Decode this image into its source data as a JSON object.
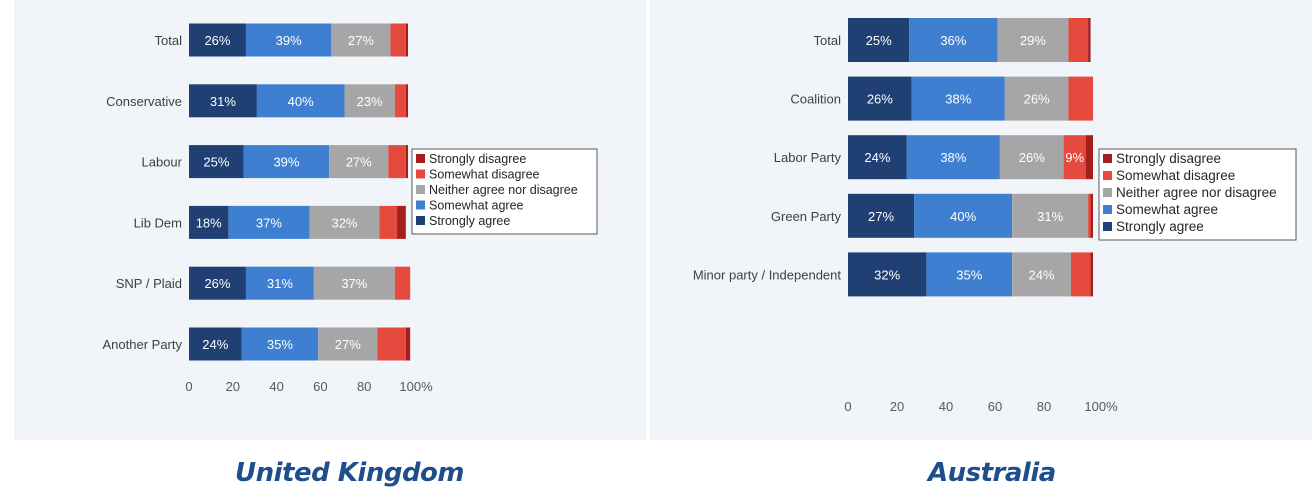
{
  "captions": {
    "left": "United Kingdom",
    "right": "Australia"
  },
  "colors": {
    "Strongly agree": "#203f73",
    "Somewhat agree": "#3f7fd1",
    "Neither agree nor disagree": "#a6a6a6",
    "Somewhat disagree": "#e44b3e",
    "Strongly disagree": "#a51f1f",
    "panel_background": "#f1f4f8"
  },
  "chart_data": [
    {
      "type": "bar",
      "orientation": "horizontal",
      "stacked": true,
      "title": "United Kingdom",
      "categories": [
        "Total",
        "Conservative",
        "Labour",
        "Lib Dem",
        "SNP / Plaid",
        "Another Party"
      ],
      "series": [
        {
          "name": "Strongly agree",
          "values": [
            26,
            31,
            25,
            18,
            26,
            24
          ],
          "labels": [
            "26%",
            "31%",
            "25%",
            "18%",
            "26%",
            "24%"
          ]
        },
        {
          "name": "Somewhat agree",
          "values": [
            39,
            40,
            39,
            37,
            31,
            35
          ],
          "labels": [
            "39%",
            "40%",
            "39%",
            "37%",
            "31%",
            "35%"
          ]
        },
        {
          "name": "Neither agree nor disagree",
          "values": [
            27,
            23,
            27,
            32,
            37,
            27
          ],
          "labels": [
            "27%",
            "23%",
            "27%",
            "32%",
            "37%",
            "27%"
          ]
        },
        {
          "name": "Somewhat disagree",
          "values": [
            7,
            5,
            8,
            8,
            7,
            13
          ],
          "labels": [
            "",
            "",
            "",
            "",
            "",
            ""
          ]
        },
        {
          "name": "Strongly disagree",
          "values": [
            1,
            1,
            1,
            4,
            0,
            2
          ],
          "labels": [
            "",
            "",
            "",
            "",
            "",
            ""
          ]
        }
      ],
      "xlim": [
        0,
        100
      ],
      "xticks": [
        "0",
        "20",
        "40",
        "60",
        "80",
        "100%"
      ],
      "legend_position": "right",
      "legend_order": [
        "Strongly disagree",
        "Somewhat disagree",
        "Neither agree nor disagree",
        "Somewhat agree",
        "Strongly agree"
      ]
    },
    {
      "type": "bar",
      "orientation": "horizontal",
      "stacked": true,
      "title": "Australia",
      "categories": [
        "Total",
        "Coalition",
        "Labor Party",
        "Green Party",
        "Minor party / Independent"
      ],
      "series": [
        {
          "name": "Strongly agree",
          "values": [
            25,
            26,
            24,
            27,
            32
          ],
          "labels": [
            "25%",
            "26%",
            "24%",
            "27%",
            "32%"
          ]
        },
        {
          "name": "Somewhat agree",
          "values": [
            36,
            38,
            38,
            40,
            35
          ],
          "labels": [
            "36%",
            "38%",
            "38%",
            "40%",
            "35%"
          ]
        },
        {
          "name": "Neither agree nor disagree",
          "values": [
            29,
            26,
            26,
            31,
            24
          ],
          "labels": [
            "29%",
            "26%",
            "26%",
            "31%",
            "24%"
          ]
        },
        {
          "name": "Somewhat disagree",
          "values": [
            8,
            10,
            9,
            1,
            8
          ],
          "labels": [
            "",
            "",
            "9%",
            "",
            ""
          ]
        },
        {
          "name": "Strongly disagree",
          "values": [
            1,
            0,
            3,
            1,
            1
          ],
          "labels": [
            "",
            "",
            "",
            "",
            ""
          ]
        }
      ],
      "xlim": [
        0,
        100
      ],
      "xticks": [
        "0",
        "20",
        "40",
        "60",
        "80",
        "100%"
      ],
      "legend_position": "right",
      "legend_order": [
        "Strongly disagree",
        "Somewhat disagree",
        "Neither agree nor disagree",
        "Somewhat agree",
        "Strongly agree"
      ]
    }
  ]
}
